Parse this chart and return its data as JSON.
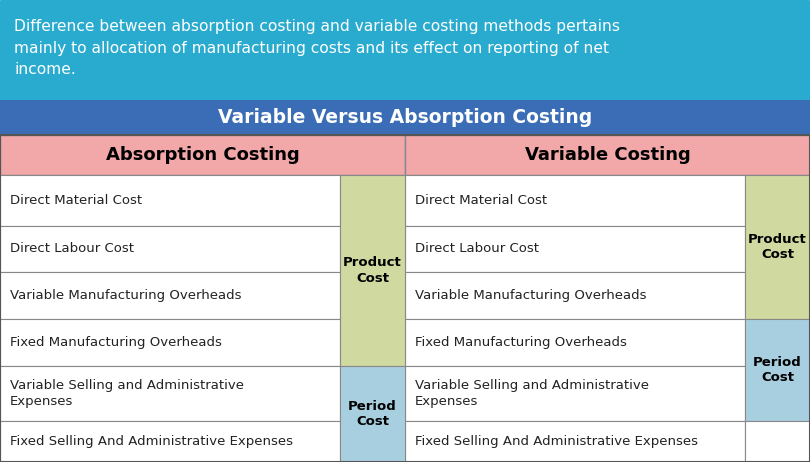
{
  "intro_text": "Difference between absorption costing and variable costing methods pertains\nmainly to allocation of manufacturing costs and its effect on reporting of net\nincome.",
  "title": "Variable Versus Absorption Costing",
  "col_headers": [
    "Absorption Costing",
    "Variable Costing"
  ],
  "rows": [
    "Direct Material Cost",
    "Direct Labour Cost",
    "Variable Manufacturing Overheads",
    "Fixed Manufacturing Overheads",
    "Variable Selling and Administrative\nExpenses",
    "Fixed Selling And Administrative Expenses"
  ],
  "abs_product_rows": [
    0,
    1,
    2,
    3
  ],
  "abs_period_rows": [
    4,
    5
  ],
  "var_product_rows": [
    0,
    1,
    2
  ],
  "var_period_rows": [
    3,
    4
  ],
  "var_empty_rows": [
    5
  ],
  "colors": {
    "intro_bg": "#29ABCF",
    "title_bg": "#3A6DB5",
    "header_bg": "#F2A7A9",
    "product_cost_bg": "#D0D9A0",
    "period_cost_bg": "#A8CFE0",
    "row_bg": "#FFFFFF",
    "border": "#888888",
    "intro_text": "#FFFFFF",
    "title_text": "#FFFFFF",
    "header_text": "#000000",
    "cell_text": "#222222",
    "label_text": "#000000"
  },
  "figsize": [
    8.1,
    4.62
  ],
  "dpi": 100
}
